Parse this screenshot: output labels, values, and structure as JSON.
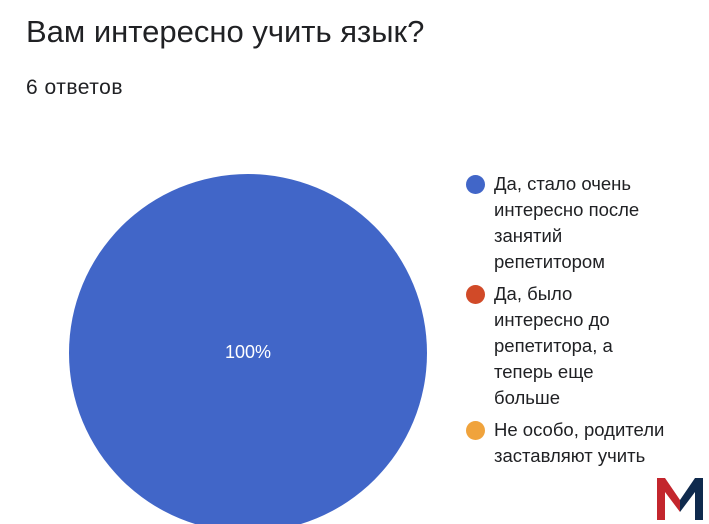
{
  "header": {
    "title": "Вам интересно учить язык?",
    "responses": "6 ответов"
  },
  "chart_data": {
    "type": "pie",
    "title": "Вам интересно учить язык?",
    "categories": [
      "Да, стало очень интересно после занятий репетитором",
      "Да, было интересно до репетитора, а теперь еще больше",
      "Не особо, родители заставляют учить"
    ],
    "values": [
      6,
      0,
      0
    ],
    "percent_labels": [
      "100%"
    ],
    "colors": [
      "#4166c8",
      "#d14a28",
      "#f0a33c"
    ],
    "legend_position": "right"
  },
  "watermark": {
    "letter": "M",
    "colors": [
      "#c3262d",
      "#0f2a4d"
    ]
  }
}
